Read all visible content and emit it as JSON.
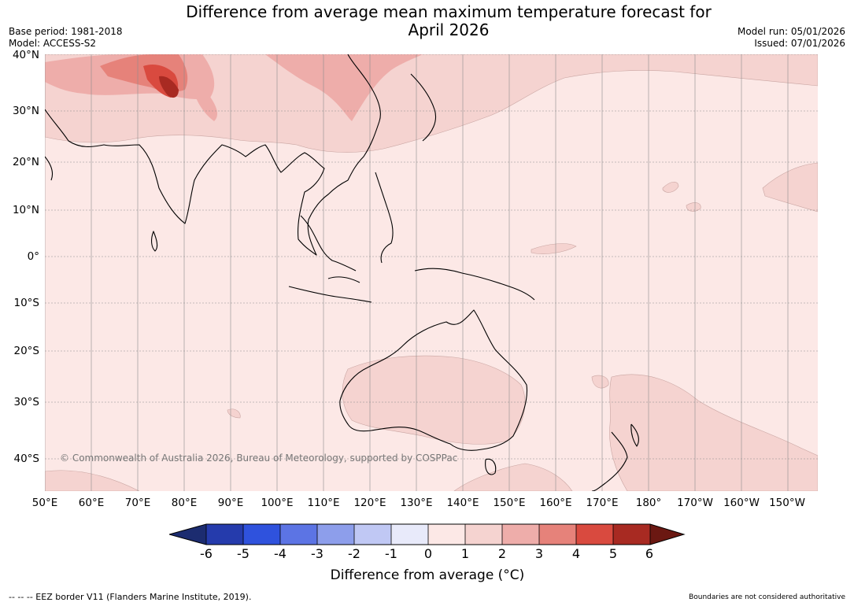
{
  "title": {
    "line1": "Difference from average mean maximum temperature forecast for",
    "line2": "April 2026"
  },
  "meta_left": {
    "base_period": "Base period: 1981-2018",
    "model": "Model: ACCESS-S2"
  },
  "meta_right": {
    "model_run": "Model run: 05/01/2026",
    "issued": "Issued: 07/01/2026"
  },
  "map": {
    "lat_labels": [
      "40°N",
      "30°N",
      "20°N",
      "10°N",
      "0°",
      "10°S",
      "20°S",
      "30°S",
      "40°S"
    ],
    "lon_labels": [
      "50°E",
      "60°E",
      "70°E",
      "80°E",
      "90°E",
      "100°E",
      "110°E",
      "120°E",
      "130°E",
      "140°E",
      "150°E",
      "160°E",
      "170°E",
      "180°",
      "170°W",
      "160°W",
      "150°W"
    ],
    "copyright": "© Commonwealth of Australia 2026, Bureau of Meteorology, supported by COSPPac",
    "colors": {
      "ocean_base": "#fce8e6",
      "anomaly_1_2": "#f5d3d0",
      "anomaly_2_3": "#eeadaa",
      "anomaly_3_4": "#e6827a",
      "anomaly_4_5": "#d94a3f",
      "anomaly_5_6": "#a82a22"
    }
  },
  "colorbar": {
    "ticks": [
      "-6",
      "-5",
      "-4",
      "-3",
      "-2",
      "-1",
      "0",
      "1",
      "2",
      "3",
      "4",
      "5",
      "6"
    ],
    "colors": [
      "#1c2c70",
      "#253bac",
      "#2f52dd",
      "#5c74e4",
      "#8d9eeb",
      "#c0c8f4",
      "#e8eafa",
      "#fce8e6",
      "#f5d3d0",
      "#eeadaa",
      "#e6827a",
      "#d94a3f",
      "#a82a22",
      "#6b1812"
    ],
    "label": "Difference from average (°C)"
  },
  "footer": {
    "eez_note": "--  --  -- EEZ border V11 (Flanders Marine Institute, 2019).",
    "boundaries_note": "Boundaries are not considered authoritative"
  }
}
